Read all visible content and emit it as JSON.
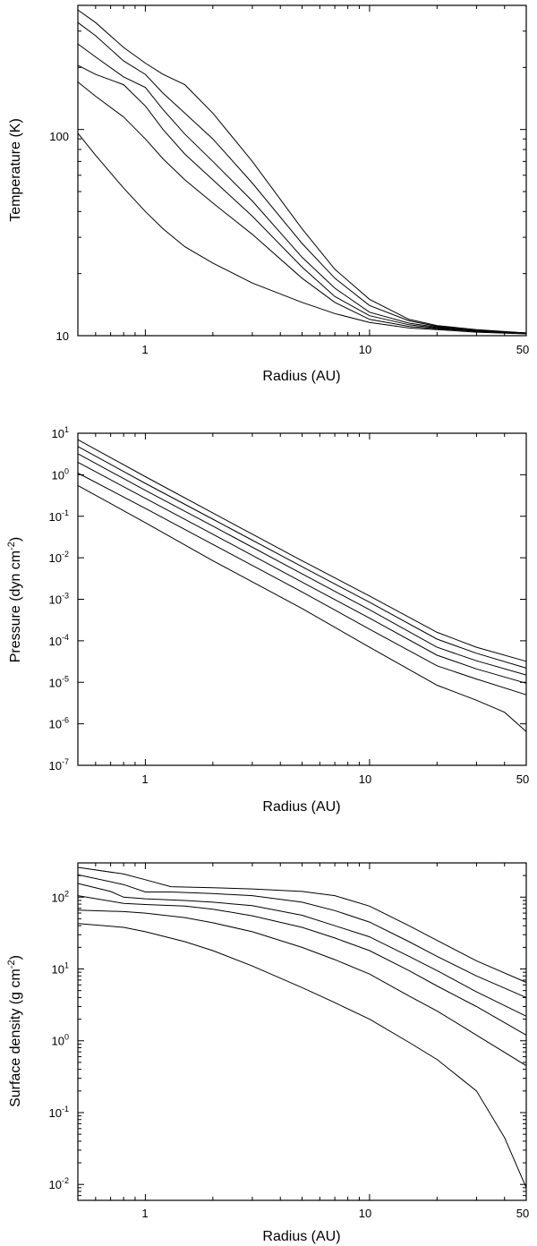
{
  "chart_data": [
    {
      "type": "line",
      "xscale": "log",
      "yscale": "log",
      "xlabel": "Radius (AU)",
      "ylabel": "Temperature (K)",
      "xlim": [
        0.5,
        50
      ],
      "ylim": [
        10,
        400
      ],
      "xticklabels": [
        "1",
        "10",
        "50"
      ],
      "yticklabels": [
        "10",
        "100"
      ],
      "series": [
        {
          "x": [
            0.5,
            0.6,
            0.8,
            1.0,
            1.2,
            1.5,
            2,
            3,
            5,
            7,
            10,
            15,
            20,
            30,
            50
          ],
          "y": [
            380,
            330,
            250,
            210,
            185,
            165,
            120,
            70,
            33,
            21,
            15,
            12,
            11.2,
            10.7,
            10.3
          ]
        },
        {
          "x": [
            0.5,
            0.6,
            0.8,
            1.0,
            1.2,
            1.5,
            2,
            3,
            5,
            7,
            10,
            15,
            20,
            30,
            50
          ],
          "y": [
            330,
            285,
            215,
            185,
            150,
            120,
            90,
            55,
            28,
            19,
            14,
            11.8,
            11.1,
            10.6,
            10.3
          ]
        },
        {
          "x": [
            0.5,
            0.6,
            0.8,
            1.0,
            1.2,
            1.5,
            2,
            3,
            5,
            7,
            10,
            15,
            20,
            30,
            50
          ],
          "y": [
            260,
            225,
            180,
            160,
            125,
            95,
            70,
            45,
            24,
            17,
            13,
            11.5,
            11,
            10.6,
            10.3
          ]
        },
        {
          "x": [
            0.5,
            0.6,
            0.8,
            1.0,
            1.2,
            1.5,
            2,
            3,
            5,
            7,
            10,
            15,
            20,
            30,
            50
          ],
          "y": [
            205,
            185,
            165,
            130,
            100,
            76,
            57,
            38,
            21.5,
            15.5,
            12.5,
            11.3,
            10.9,
            10.5,
            10.3
          ]
        },
        {
          "x": [
            0.5,
            0.6,
            0.8,
            1.0,
            1.2,
            1.5,
            2,
            3,
            5,
            7,
            10,
            15,
            20,
            30,
            50
          ],
          "y": [
            170,
            145,
            115,
            90,
            72,
            57,
            44,
            31,
            19,
            14.5,
            12,
            11.1,
            10.8,
            10.5,
            10.3
          ]
        },
        {
          "x": [
            0.5,
            0.6,
            0.8,
            1.0,
            1.2,
            1.5,
            2,
            3,
            5,
            7,
            10,
            15,
            20,
            30,
            50
          ],
          "y": [
            96,
            75,
            52,
            40,
            33,
            27,
            22.5,
            18,
            14.5,
            12.8,
            11.6,
            10.9,
            10.7,
            10.4,
            10.2
          ]
        }
      ]
    },
    {
      "type": "line",
      "xscale": "log",
      "yscale": "log",
      "xlabel": "Radius (AU)",
      "ylabel": "Pressure (dyn cm",
      "ylabel_exp": "-2",
      "ylabel_suffix": ")",
      "xlim": [
        0.5,
        50
      ],
      "ylim": [
        1e-07,
        10
      ],
      "xticklabels": [
        "1",
        "10",
        "50"
      ],
      "ytick_base": "10",
      "ytick_exps": [
        "1",
        "0",
        "-1",
        "-2",
        "-3",
        "-4",
        "-5",
        "-6",
        "-7"
      ],
      "series": [
        {
          "x": [
            0.5,
            1,
            2,
            5,
            10,
            20,
            30,
            50
          ],
          "y": [
            7.0,
            0.9,
            0.12,
            0.0085,
            0.0012,
            0.00016,
            7e-05,
            3.2e-05
          ]
        },
        {
          "x": [
            0.5,
            1,
            2,
            5,
            10,
            20,
            30,
            50
          ],
          "y": [
            4.8,
            0.62,
            0.085,
            0.0061,
            0.00085,
            0.00011,
            5e-05,
            2.2e-05
          ]
        },
        {
          "x": [
            0.5,
            1,
            2,
            5,
            10,
            20,
            30,
            50
          ],
          "y": [
            3.2,
            0.42,
            0.058,
            0.0041,
            0.00056,
            7e-05,
            3.3e-05,
            1.5e-05
          ]
        },
        {
          "x": [
            0.5,
            1,
            2,
            5,
            10,
            20,
            30,
            50
          ],
          "y": [
            2.0,
            0.27,
            0.037,
            0.0026,
            0.00035,
            4.5e-05,
            2.1e-05,
            9.5e-06
          ]
        },
        {
          "x": [
            0.5,
            1,
            2,
            5,
            10,
            20,
            30,
            50
          ],
          "y": [
            1.1,
            0.155,
            0.021,
            0.0015,
            0.00019,
            2.5e-05,
            1.2e-05,
            5e-06
          ]
        },
        {
          "x": [
            0.5,
            1,
            2,
            5,
            10,
            20,
            30,
            40,
            50
          ],
          "y": [
            0.55,
            0.07,
            0.0085,
            0.0006,
            7e-05,
            8.5e-06,
            3.7e-06,
            1.9e-06,
            6.5e-07
          ]
        }
      ]
    },
    {
      "type": "line",
      "xscale": "log",
      "yscale": "log",
      "xlabel": "Radius (AU)",
      "ylabel": "Surface density (g cm",
      "ylabel_exp": "-2",
      "ylabel_suffix": ")",
      "xlim": [
        0.5,
        50
      ],
      "ylim": [
        0.006,
        300
      ],
      "xticklabels": [
        "1",
        "10",
        "50"
      ],
      "ytick_base": "10",
      "ytick_exps": [
        "2",
        "1",
        "0",
        "-1",
        "-2"
      ],
      "series": [
        {
          "x": [
            0.5,
            0.8,
            1.0,
            1.3,
            2,
            3,
            5,
            7,
            10,
            15,
            20,
            30,
            50
          ],
          "y": [
            260,
            210,
            175,
            140,
            135,
            130,
            120,
            105,
            75,
            40,
            25,
            13,
            6.5
          ]
        },
        {
          "x": [
            0.5,
            0.8,
            1.0,
            1.3,
            2,
            3,
            5,
            7,
            10,
            15,
            20,
            30,
            50
          ],
          "y": [
            205,
            150,
            118,
            118,
            112,
            105,
            85,
            65,
            45,
            24,
            15,
            8,
            4
          ]
        },
        {
          "x": [
            0.5,
            0.7,
            0.8,
            1.0,
            1.5,
            2,
            3,
            5,
            7,
            10,
            15,
            20,
            30,
            50
          ],
          "y": [
            155,
            120,
            100,
            95,
            90,
            85,
            76,
            56,
            40,
            28,
            15,
            9.5,
            4.8,
            2.2
          ]
        },
        {
          "x": [
            0.5,
            0.8,
            1.0,
            1.5,
            2,
            3,
            5,
            7,
            10,
            15,
            20,
            30,
            50
          ],
          "y": [
            105,
            82,
            79,
            75,
            68,
            55,
            38,
            27,
            18,
            9.5,
            5.8,
            3,
            1.2
          ]
        },
        {
          "x": [
            0.5,
            0.8,
            1.0,
            1.5,
            2,
            3,
            5,
            7,
            10,
            15,
            20,
            30,
            50
          ],
          "y": [
            66,
            63,
            60,
            52,
            44,
            33,
            20,
            13.5,
            8.5,
            4.2,
            2.6,
            1.2,
            0.45
          ]
        },
        {
          "x": [
            0.5,
            0.8,
            1.0,
            1.5,
            2,
            3,
            5,
            7,
            10,
            15,
            20,
            30,
            40,
            50
          ],
          "y": [
            43,
            38,
            33,
            24,
            18,
            11,
            5.5,
            3.4,
            2.0,
            0.95,
            0.55,
            0.2,
            0.045,
            0.009
          ]
        }
      ]
    }
  ]
}
